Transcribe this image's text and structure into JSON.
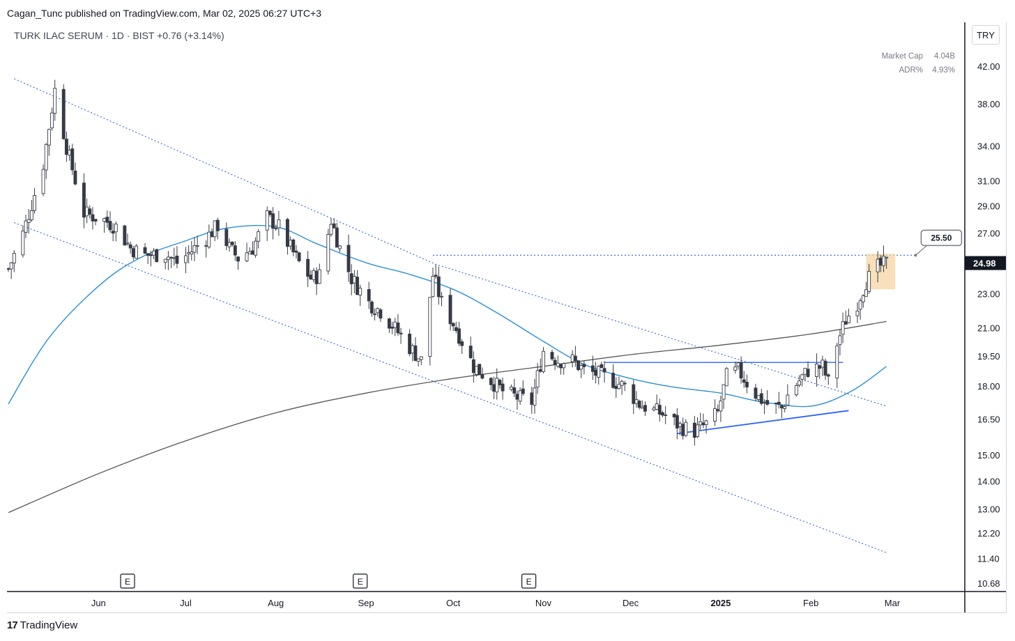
{
  "header": {
    "published": "Cagan_Tunc published on TradingView.com, Mar 02, 2025 06:27 UTC+3",
    "symbol_line": "TURK ILAC SERUM · 1D · BIST",
    "change": "+0.76 (+3.14%)",
    "currency": "TRY"
  },
  "info": {
    "market_cap_label": "Market Cap",
    "market_cap_value": "4.04B",
    "adr_label": "ADR%",
    "adr_value": "4.93%"
  },
  "footer": {
    "brand": "TradingView",
    "logo": "17"
  },
  "colors": {
    "up_candle": "#ffffff",
    "down_candle": "#363a45",
    "ma_fast": "#2a8fd6",
    "ma_slow": "#555555",
    "channel": "#3d6fd6",
    "trendline": "#2962ff",
    "highlight": "#f5d6a4"
  },
  "chart_data": {
    "type": "candlestick",
    "symbol": "TURK ILAC SERUM",
    "interval": "1D",
    "exchange": "BIST",
    "last_price": "24.98",
    "annotation_price": "25.50",
    "y_axis": {
      "scale": "log",
      "ticks": [
        "42.00",
        "38.00",
        "34.00",
        "31.00",
        "29.00",
        "27.00",
        "23.00",
        "21.00",
        "19.50",
        "18.00",
        "16.50",
        "15.00",
        "14.00",
        "13.00",
        "12.20",
        "11.40",
        "10.68"
      ],
      "range": [
        10.5,
        46.0
      ]
    },
    "x_axis": {
      "ticks": [
        {
          "label": "Jun",
          "date": "2024-06-01"
        },
        {
          "label": "Jul",
          "date": "2024-07-01"
        },
        {
          "label": "Aug",
          "date": "2024-08-01"
        },
        {
          "label": "Sep",
          "date": "2024-09-01"
        },
        {
          "label": "Oct",
          "date": "2024-10-01"
        },
        {
          "label": "Nov",
          "date": "2024-11-01"
        },
        {
          "label": "Dec",
          "date": "2024-12-01"
        },
        {
          "label": "2025",
          "date": "2025-01-01"
        },
        {
          "label": "Feb",
          "date": "2025-02-01"
        },
        {
          "label": "Mar",
          "date": "2025-03-01"
        }
      ]
    },
    "earnings_markers": [
      {
        "label": "E",
        "date": "2024-06-11"
      },
      {
        "label": "E",
        "date": "2024-08-30"
      },
      {
        "label": "E",
        "date": "2024-10-27"
      }
    ],
    "price_path": [
      [
        "2024-05-01",
        24.6
      ],
      [
        "2024-05-06",
        27.0
      ],
      [
        "2024-05-09",
        29.2
      ],
      [
        "2024-05-13",
        32.5
      ],
      [
        "2024-05-17",
        39.5
      ],
      [
        "2024-05-21",
        34.0
      ],
      [
        "2024-05-27",
        28.5
      ],
      [
        "2024-06-03",
        28.0
      ],
      [
        "2024-06-07",
        27.5
      ],
      [
        "2024-06-12",
        26.0
      ],
      [
        "2024-06-17",
        25.5
      ],
      [
        "2024-06-24",
        25.6
      ],
      [
        "2024-06-28",
        25.0
      ],
      [
        "2024-07-03",
        25.8
      ],
      [
        "2024-07-08",
        26.7
      ],
      [
        "2024-07-12",
        27.6
      ],
      [
        "2024-07-16",
        26.0
      ],
      [
        "2024-07-19",
        25.3
      ],
      [
        "2024-07-24",
        26.0
      ],
      [
        "2024-07-29",
        28.2
      ],
      [
        "2024-08-02",
        27.5
      ],
      [
        "2024-08-06",
        26.0
      ],
      [
        "2024-08-09",
        25.0
      ],
      [
        "2024-08-13",
        24.0
      ],
      [
        "2024-08-16",
        24.2
      ],
      [
        "2024-08-20",
        28.0
      ],
      [
        "2024-08-23",
        26.0
      ],
      [
        "2024-08-27",
        24.0
      ],
      [
        "2024-09-02",
        22.5
      ],
      [
        "2024-09-06",
        22.0
      ],
      [
        "2024-09-11",
        21.0
      ],
      [
        "2024-09-16",
        20.0
      ],
      [
        "2024-09-20",
        19.3
      ],
      [
        "2024-09-24",
        24.2
      ],
      [
        "2024-09-27",
        22.5
      ],
      [
        "2024-10-02",
        21.0
      ],
      [
        "2024-10-08",
        19.0
      ],
      [
        "2024-10-14",
        18.3
      ],
      [
        "2024-10-18",
        17.8
      ],
      [
        "2024-10-23",
        17.5
      ],
      [
        "2024-10-28",
        17.3
      ],
      [
        "2024-11-01",
        19.8
      ],
      [
        "2024-11-06",
        19.3
      ],
      [
        "2024-11-11",
        19.3
      ],
      [
        "2024-11-15",
        18.8
      ],
      [
        "2024-11-20",
        18.6
      ],
      [
        "2024-11-25",
        18.3
      ],
      [
        "2024-11-29",
        18.0
      ],
      [
        "2024-12-04",
        17.2
      ],
      [
        "2024-12-09",
        16.9
      ],
      [
        "2024-12-13",
        16.7
      ],
      [
        "2024-12-18",
        16.2
      ],
      [
        "2024-12-23",
        16.0
      ],
      [
        "2024-12-27",
        16.3
      ],
      [
        "2024-12-31",
        16.8
      ],
      [
        "2025-01-03",
        18.5
      ],
      [
        "2025-01-07",
        18.8
      ],
      [
        "2025-01-10",
        18.2
      ],
      [
        "2025-01-14",
        17.5
      ],
      [
        "2025-01-17",
        17.2
      ],
      [
        "2025-01-22",
        17.0
      ],
      [
        "2025-01-24",
        17.6
      ],
      [
        "2025-01-28",
        18.3
      ],
      [
        "2025-01-31",
        18.8
      ],
      [
        "2025-02-05",
        19.0
      ],
      [
        "2025-02-07",
        18.2
      ],
      [
        "2025-02-10",
        20.2
      ],
      [
        "2025-02-13",
        21.5
      ],
      [
        "2025-02-17",
        22.5
      ],
      [
        "2025-02-20",
        23.8
      ],
      [
        "2025-02-24",
        24.7
      ],
      [
        "2025-02-27",
        24.98
      ]
    ],
    "ma_fast": [
      [
        "2024-05-01",
        17.2
      ],
      [
        "2024-05-15",
        20.5
      ],
      [
        "2024-06-01",
        23.5
      ],
      [
        "2024-06-15",
        25.3
      ],
      [
        "2024-07-01",
        26.5
      ],
      [
        "2024-07-15",
        27.4
      ],
      [
        "2024-08-01",
        27.5
      ],
      [
        "2024-08-15",
        26.3
      ],
      [
        "2024-09-01",
        25.0
      ],
      [
        "2024-09-15",
        24.3
      ],
      [
        "2024-10-01",
        23.3
      ],
      [
        "2024-10-15",
        22.0
      ],
      [
        "2024-11-01",
        20.3
      ],
      [
        "2024-11-15",
        19.1
      ],
      [
        "2024-12-01",
        18.4
      ],
      [
        "2024-12-15",
        18.0
      ],
      [
        "2025-01-01",
        17.7
      ],
      [
        "2025-01-15",
        17.3
      ],
      [
        "2025-02-01",
        17.1
      ],
      [
        "2025-02-15",
        17.8
      ],
      [
        "2025-02-27",
        19.0
      ]
    ],
    "ma_slow": [
      [
        "2024-05-01",
        12.9
      ],
      [
        "2024-06-01",
        14.3
      ],
      [
        "2024-07-01",
        15.6
      ],
      [
        "2024-08-01",
        16.8
      ],
      [
        "2024-09-01",
        17.7
      ],
      [
        "2024-10-01",
        18.4
      ],
      [
        "2024-11-01",
        19.0
      ],
      [
        "2024-12-01",
        19.6
      ],
      [
        "2025-01-01",
        20.1
      ],
      [
        "2025-02-01",
        20.7
      ],
      [
        "2025-02-27",
        21.4
      ]
    ],
    "drawings": {
      "channel_upper": [
        [
          "2024-05-03",
          40.7
        ],
        [
          "2024-09-25",
          24.9
        ],
        [
          "2025-02-27",
          17.1
        ]
      ],
      "channel_lower": [
        [
          "2024-05-03",
          27.8
        ],
        [
          "2025-02-27",
          11.6
        ]
      ],
      "resistance_dotted": [
        [
          "2024-09-24",
          25.5
        ],
        [
          "2025-03-09",
          25.5
        ]
      ],
      "resistance_solid": [
        [
          "2024-11-22",
          19.2
        ],
        [
          "2025-02-12",
          19.2
        ]
      ],
      "support_line": [
        [
          "2024-12-17",
          15.9
        ],
        [
          "2025-02-14",
          16.9
        ]
      ]
    }
  }
}
